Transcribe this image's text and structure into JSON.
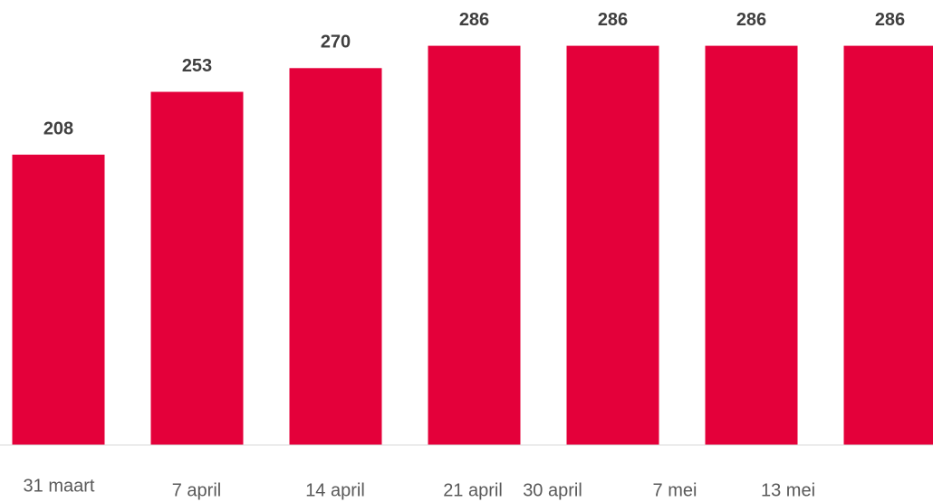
{
  "chart_data": {
    "type": "bar",
    "categories": [
      "31 maart",
      "7 april",
      "14 april",
      "21 april",
      "30 april",
      "7 mei",
      "13 mei"
    ],
    "values": [
      208,
      253,
      270,
      286,
      286,
      286,
      286
    ],
    "color": "#e4003a",
    "ylim": [
      0,
      300
    ]
  }
}
